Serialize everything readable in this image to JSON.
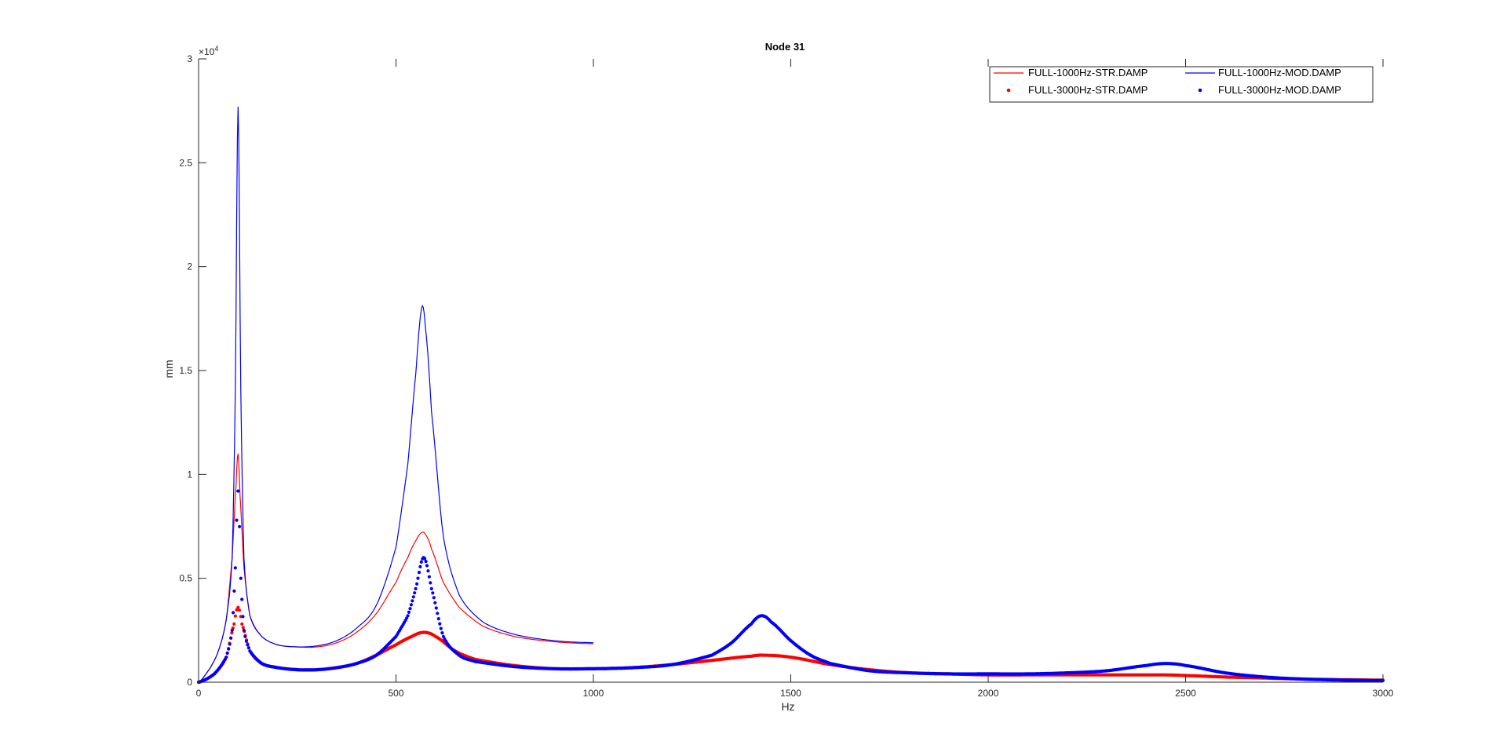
{
  "chart_data": {
    "type": "line",
    "title": "Node 31",
    "xlabel": "Hz",
    "ylabel": "mm",
    "exponent_label": "×10",
    "exponent_power": "4",
    "xlim": [
      0,
      3000
    ],
    "ylim": [
      0,
      30000
    ],
    "xticks": [
      0,
      500,
      1000,
      1500,
      2000,
      2500,
      3000
    ],
    "yticks": [
      0,
      5000,
      10000,
      15000,
      20000,
      25000,
      30000
    ],
    "yticklabels": [
      "0",
      "0.5",
      "1",
      "1.5",
      "2",
      "2.5",
      "3"
    ],
    "grid": false,
    "legend_position": "top-right",
    "legend_columns": 2,
    "series": [
      {
        "name": "FULL-1000Hz-STR.DAMP",
        "style": "line",
        "color": "#ff0000",
        "x": [
          0,
          30,
          50,
          70,
          85,
          95,
          100,
          105,
          115,
          130,
          160,
          200,
          250,
          300,
          350,
          400,
          450,
          500,
          530,
          550,
          565,
          575,
          590,
          620,
          660,
          720,
          800,
          900,
          1000
        ],
        "y": [
          0,
          700,
          1500,
          3000,
          6000,
          9500,
          11000,
          9000,
          5500,
          3200,
          2200,
          1800,
          1700,
          1700,
          1900,
          2400,
          3300,
          4800,
          6000,
          6800,
          7200,
          7100,
          6400,
          4800,
          3600,
          2700,
          2200,
          1950,
          1850
        ]
      },
      {
        "name": "FULL-1000Hz-MOD.DAMP",
        "style": "line",
        "color": "#0000ff",
        "x": [
          0,
          30,
          50,
          70,
          85,
          93,
          100,
          107,
          115,
          130,
          160,
          200,
          250,
          300,
          350,
          400,
          450,
          500,
          530,
          550,
          565,
          575,
          590,
          620,
          660,
          720,
          800,
          900,
          1000
        ],
        "y": [
          0,
          700,
          1500,
          3000,
          6000,
          14000,
          27700,
          14000,
          6000,
          3200,
          2200,
          1800,
          1700,
          1750,
          2000,
          2600,
          3700,
          6500,
          10500,
          14800,
          18000,
          17000,
          13000,
          7000,
          4200,
          2900,
          2300,
          2000,
          1900
        ]
      },
      {
        "name": "FULL-3000Hz-STR.DAMP",
        "style": "markers",
        "color": "#ff0000",
        "x": [
          0,
          40,
          70,
          90,
          100,
          110,
          130,
          160,
          200,
          250,
          300,
          350,
          400,
          450,
          500,
          540,
          570,
          600,
          650,
          700,
          800,
          900,
          1000,
          1100,
          1200,
          1300,
          1400,
          1430,
          1500,
          1600,
          1700,
          1800,
          1900,
          2000,
          2100,
          2200,
          2300,
          2400,
          2450,
          2500,
          2600,
          2700,
          2800,
          2900,
          3000
        ],
        "y": [
          0,
          400,
          1200,
          2800,
          3600,
          2800,
          1500,
          900,
          700,
          600,
          600,
          700,
          900,
          1300,
          1800,
          2200,
          2400,
          2200,
          1500,
          1100,
          800,
          650,
          650,
          700,
          850,
          1050,
          1250,
          1300,
          1200,
          850,
          600,
          450,
          400,
          350,
          350,
          350,
          350,
          350,
          350,
          320,
          250,
          200,
          150,
          120,
          100
        ]
      },
      {
        "name": "FULL-3000Hz-MOD.DAMP",
        "style": "markers",
        "color": "#0000ff",
        "x": [
          0,
          40,
          70,
          85,
          93,
          100,
          107,
          115,
          130,
          160,
          200,
          250,
          300,
          350,
          400,
          450,
          500,
          530,
          550,
          570,
          590,
          620,
          660,
          700,
          800,
          900,
          1000,
          1100,
          1200,
          1300,
          1350,
          1400,
          1425,
          1450,
          1500,
          1550,
          1600,
          1700,
          1800,
          1900,
          2000,
          2100,
          2200,
          2300,
          2400,
          2450,
          2500,
          2600,
          2700,
          2800,
          2900,
          3000
        ],
        "y": [
          0,
          400,
          1200,
          2500,
          5500,
          9200,
          5000,
          2500,
          1500,
          900,
          700,
          600,
          600,
          700,
          900,
          1300,
          2200,
          3200,
          4500,
          6000,
          4500,
          2200,
          1300,
          1000,
          750,
          650,
          650,
          700,
          850,
          1300,
          1900,
          2800,
          3200,
          2900,
          2000,
          1300,
          900,
          550,
          450,
          400,
          400,
          400,
          450,
          550,
          800,
          900,
          800,
          450,
          250,
          150,
          100,
          80
        ]
      }
    ]
  }
}
